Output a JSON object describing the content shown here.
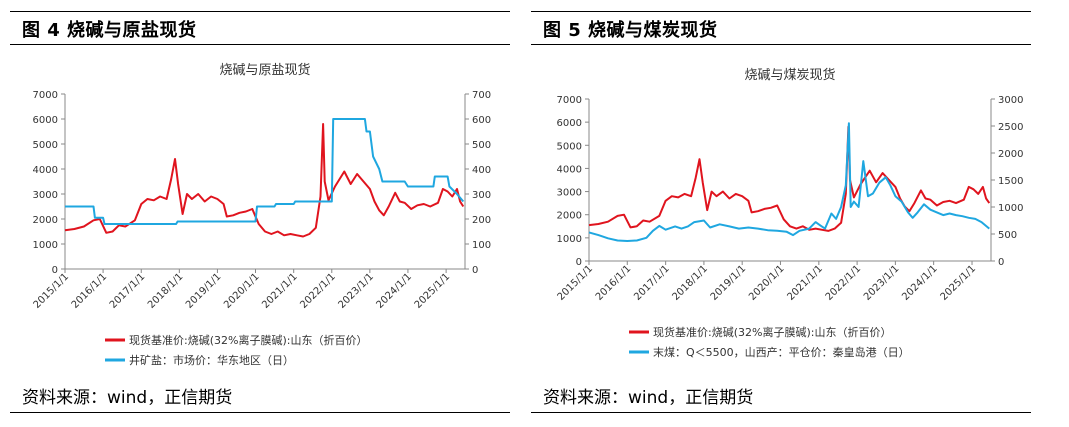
{
  "panels": [
    {
      "figure_title": "图 4  烧碱与原盐现货",
      "source": "资料来源：wind，正信期货"
    },
    {
      "figure_title": "图 5  烧碱与煤炭现货",
      "source": "资料来源：wind，正信期货"
    }
  ],
  "colors": {
    "red": "#e0141e",
    "blue": "#1fa7e0",
    "axis": "#888888"
  },
  "chart_data": [
    {
      "type": "line",
      "title": "烧碱与原盐现货",
      "x_type": "date",
      "xlim": [
        "2015-01-01",
        "2025-07-01"
      ],
      "x_ticks": [
        "2015/1/1",
        "2016/1/1",
        "2017/1/1",
        "2018/1/1",
        "2019/1/1",
        "2020/1/1",
        "2021/1/1",
        "2022/1/1",
        "2023/1/1",
        "2024/1/1",
        "2025/1/1"
      ],
      "ylim": [
        0,
        7000
      ],
      "y_ticks": [
        0,
        1000,
        2000,
        3000,
        4000,
        5000,
        6000,
        7000
      ],
      "y2lim": [
        0,
        700
      ],
      "y2_ticks": [
        0,
        100,
        200,
        300,
        400,
        500,
        600,
        700
      ],
      "legend_position": "bottom",
      "series": [
        {
          "name": "现货基准价:烧碱(32%离子膜碱):山东（折百价）",
          "axis": "left",
          "color": "#e0141e",
          "points": [
            [
              "2015-01-01",
              1550
            ],
            [
              "2015-04-01",
              1600
            ],
            [
              "2015-07-01",
              1700
            ],
            [
              "2015-10-01",
              1950
            ],
            [
              "2015-12-01",
              2000
            ],
            [
              "2016-02-01",
              1450
            ],
            [
              "2016-04-01",
              1500
            ],
            [
              "2016-06-01",
              1750
            ],
            [
              "2016-08-01",
              1700
            ],
            [
              "2016-11-01",
              1950
            ],
            [
              "2017-01-01",
              2600
            ],
            [
              "2017-03-01",
              2800
            ],
            [
              "2017-05-01",
              2750
            ],
            [
              "2017-07-01",
              2900
            ],
            [
              "2017-09-01",
              2800
            ],
            [
              "2017-10-15",
              3600
            ],
            [
              "2017-11-20",
              4400
            ],
            [
              "2017-12-20",
              3400
            ],
            [
              "2018-02-01",
              2200
            ],
            [
              "2018-03-15",
              3000
            ],
            [
              "2018-05-01",
              2800
            ],
            [
              "2018-07-01",
              3000
            ],
            [
              "2018-09-01",
              2700
            ],
            [
              "2018-11-01",
              2900
            ],
            [
              "2019-01-01",
              2800
            ],
            [
              "2019-03-01",
              2600
            ],
            [
              "2019-04-01",
              2100
            ],
            [
              "2019-06-01",
              2150
            ],
            [
              "2019-08-01",
              2250
            ],
            [
              "2019-10-01",
              2300
            ],
            [
              "2019-12-01",
              2400
            ],
            [
              "2020-02-01",
              1800
            ],
            [
              "2020-04-01",
              1500
            ],
            [
              "2020-06-01",
              1400
            ],
            [
              "2020-08-01",
              1500
            ],
            [
              "2020-10-01",
              1350
            ],
            [
              "2020-12-01",
              1400
            ],
            [
              "2021-02-01",
              1350
            ],
            [
              "2021-04-01",
              1300
            ],
            [
              "2021-06-01",
              1400
            ],
            [
              "2021-08-01",
              1650
            ],
            [
              "2021-09-15",
              2900
            ],
            [
              "2021-10-10",
              5800
            ],
            [
              "2021-10-25",
              3500
            ],
            [
              "2021-12-01",
              2750
            ],
            [
              "2022-02-01",
              3300
            ],
            [
              "2022-04-01",
              3700
            ],
            [
              "2022-05-01",
              3900
            ],
            [
              "2022-07-01",
              3400
            ],
            [
              "2022-09-01",
              3800
            ],
            [
              "2022-11-01",
              3500
            ],
            [
              "2023-01-01",
              3200
            ],
            [
              "2023-02-15",
              2700
            ],
            [
              "2023-04-01",
              2350
            ],
            [
              "2023-05-15",
              2150
            ],
            [
              "2023-07-01",
              2500
            ],
            [
              "2023-09-01",
              3050
            ],
            [
              "2023-10-15",
              2700
            ],
            [
              "2023-12-01",
              2650
            ],
            [
              "2024-02-01",
              2400
            ],
            [
              "2024-04-01",
              2550
            ],
            [
              "2024-06-01",
              2600
            ],
            [
              "2024-08-01",
              2500
            ],
            [
              "2024-10-15",
              2650
            ],
            [
              "2024-12-01",
              3200
            ],
            [
              "2025-01-15",
              3100
            ],
            [
              "2025-03-01",
              2900
            ],
            [
              "2025-04-15",
              3200
            ],
            [
              "2025-05-15",
              2700
            ],
            [
              "2025-06-15",
              2500
            ]
          ]
        },
        {
          "name": "井矿盐：市场价：华东地区（日）",
          "axis": "right",
          "color": "#1fa7e0",
          "points": [
            [
              "2015-01-01",
              250
            ],
            [
              "2015-10-01",
              250
            ],
            [
              "2015-10-15",
              205
            ],
            [
              "2016-01-01",
              205
            ],
            [
              "2016-01-15",
              180
            ],
            [
              "2017-12-01",
              180
            ],
            [
              "2017-12-15",
              190
            ],
            [
              "2020-01-01",
              190
            ],
            [
              "2020-01-15",
              250
            ],
            [
              "2020-07-01",
              250
            ],
            [
              "2020-07-15",
              260
            ],
            [
              "2021-01-01",
              260
            ],
            [
              "2021-01-15",
              270
            ],
            [
              "2022-01-01",
              270
            ],
            [
              "2022-01-15",
              600
            ],
            [
              "2022-11-15",
              600
            ],
            [
              "2022-11-30",
              550
            ],
            [
              "2023-01-01",
              550
            ],
            [
              "2023-02-01",
              450
            ],
            [
              "2023-04-01",
              400
            ],
            [
              "2023-05-01",
              350
            ],
            [
              "2023-12-01",
              350
            ],
            [
              "2024-01-01",
              330
            ],
            [
              "2024-09-01",
              330
            ],
            [
              "2024-09-15",
              370
            ],
            [
              "2025-01-15",
              370
            ],
            [
              "2025-02-01",
              330
            ],
            [
              "2025-04-15",
              300
            ],
            [
              "2025-06-15",
              270
            ]
          ]
        }
      ]
    },
    {
      "type": "line",
      "title": "烧碱与煤炭现货",
      "x_type": "date",
      "xlim": [
        "2015-01-01",
        "2025-07-01"
      ],
      "x_ticks": [
        "2015/1/1",
        "2016/1/1",
        "2017/1/1",
        "2018/1/1",
        "2019/1/1",
        "2020/1/1",
        "2021/1/1",
        "2022/1/1",
        "2023/1/1",
        "2024/1/1",
        "2025/1/1"
      ],
      "ylim": [
        0,
        7000
      ],
      "y_ticks": [
        0,
        1000,
        2000,
        3000,
        4000,
        5000,
        6000,
        7000
      ],
      "y2lim": [
        0,
        3000
      ],
      "y2_ticks": [
        0,
        500,
        1000,
        1500,
        2000,
        2500,
        3000
      ],
      "legend_position": "bottom",
      "series": [
        {
          "name": "现货基准价:烧碱(32%离子膜碱):山东（折百价）",
          "axis": "left",
          "color": "#e0141e",
          "points": [
            [
              "2015-01-01",
              1550
            ],
            [
              "2015-04-01",
              1600
            ],
            [
              "2015-07-01",
              1700
            ],
            [
              "2015-10-01",
              1950
            ],
            [
              "2015-12-01",
              2000
            ],
            [
              "2016-02-01",
              1450
            ],
            [
              "2016-04-01",
              1500
            ],
            [
              "2016-06-01",
              1750
            ],
            [
              "2016-08-01",
              1700
            ],
            [
              "2016-11-01",
              1950
            ],
            [
              "2017-01-01",
              2600
            ],
            [
              "2017-03-01",
              2800
            ],
            [
              "2017-05-01",
              2750
            ],
            [
              "2017-07-01",
              2900
            ],
            [
              "2017-09-01",
              2800
            ],
            [
              "2017-10-15",
              3600
            ],
            [
              "2017-11-20",
              4400
            ],
            [
              "2017-12-20",
              3400
            ],
            [
              "2018-02-01",
              2200
            ],
            [
              "2018-03-15",
              3000
            ],
            [
              "2018-05-01",
              2800
            ],
            [
              "2018-07-01",
              3000
            ],
            [
              "2018-09-01",
              2700
            ],
            [
              "2018-11-01",
              2900
            ],
            [
              "2019-01-01",
              2800
            ],
            [
              "2019-03-01",
              2600
            ],
            [
              "2019-04-01",
              2100
            ],
            [
              "2019-06-01",
              2150
            ],
            [
              "2019-08-01",
              2250
            ],
            [
              "2019-10-01",
              2300
            ],
            [
              "2019-12-01",
              2400
            ],
            [
              "2020-02-01",
              1800
            ],
            [
              "2020-04-01",
              1500
            ],
            [
              "2020-06-01",
              1400
            ],
            [
              "2020-08-01",
              1500
            ],
            [
              "2020-10-01",
              1350
            ],
            [
              "2020-12-01",
              1400
            ],
            [
              "2021-02-01",
              1350
            ],
            [
              "2021-04-01",
              1300
            ],
            [
              "2021-06-01",
              1400
            ],
            [
              "2021-08-01",
              1650
            ],
            [
              "2021-09-15",
              2900
            ],
            [
              "2021-10-10",
              5800
            ],
            [
              "2021-10-25",
              3500
            ],
            [
              "2021-12-01",
              2750
            ],
            [
              "2022-02-01",
              3300
            ],
            [
              "2022-04-01",
              3700
            ],
            [
              "2022-05-01",
              3900
            ],
            [
              "2022-07-01",
              3400
            ],
            [
              "2022-09-01",
              3800
            ],
            [
              "2022-11-01",
              3500
            ],
            [
              "2023-01-01",
              3200
            ],
            [
              "2023-02-15",
              2700
            ],
            [
              "2023-04-01",
              2350
            ],
            [
              "2023-05-15",
              2150
            ],
            [
              "2023-07-01",
              2500
            ],
            [
              "2023-09-01",
              3050
            ],
            [
              "2023-10-15",
              2700
            ],
            [
              "2023-12-01",
              2650
            ],
            [
              "2024-02-01",
              2400
            ],
            [
              "2024-04-01",
              2550
            ],
            [
              "2024-06-01",
              2600
            ],
            [
              "2024-08-01",
              2500
            ],
            [
              "2024-10-15",
              2650
            ],
            [
              "2024-12-01",
              3200
            ],
            [
              "2025-01-15",
              3100
            ],
            [
              "2025-03-01",
              2900
            ],
            [
              "2025-04-15",
              3200
            ],
            [
              "2025-05-15",
              2700
            ],
            [
              "2025-06-15",
              2500
            ]
          ]
        },
        {
          "name": "末煤：Q＜5500，山西产：平仓价：秦皇岛港（日）",
          "axis": "right",
          "color": "#1fa7e0",
          "points": [
            [
              "2015-01-01",
              530
            ],
            [
              "2015-04-01",
              480
            ],
            [
              "2015-07-01",
              420
            ],
            [
              "2015-10-01",
              380
            ],
            [
              "2016-01-01",
              370
            ],
            [
              "2016-04-01",
              380
            ],
            [
              "2016-07-01",
              430
            ],
            [
              "2016-09-01",
              560
            ],
            [
              "2016-11-01",
              650
            ],
            [
              "2017-01-01",
              580
            ],
            [
              "2017-04-01",
              640
            ],
            [
              "2017-06-01",
              600
            ],
            [
              "2017-08-01",
              640
            ],
            [
              "2017-10-01",
              720
            ],
            [
              "2018-01-01",
              750
            ],
            [
              "2018-03-01",
              620
            ],
            [
              "2018-06-01",
              680
            ],
            [
              "2018-09-01",
              640
            ],
            [
              "2018-12-01",
              600
            ],
            [
              "2019-03-01",
              620
            ],
            [
              "2019-06-01",
              600
            ],
            [
              "2019-09-01",
              570
            ],
            [
              "2019-12-01",
              560
            ],
            [
              "2020-03-01",
              540
            ],
            [
              "2020-05-01",
              480
            ],
            [
              "2020-07-01",
              560
            ],
            [
              "2020-10-01",
              600
            ],
            [
              "2020-12-01",
              720
            ],
            [
              "2021-01-15",
              660
            ],
            [
              "2021-03-01",
              600
            ],
            [
              "2021-05-01",
              880
            ],
            [
              "2021-06-15",
              780
            ],
            [
              "2021-08-01",
              1000
            ],
            [
              "2021-09-15",
              1400
            ],
            [
              "2021-10-15",
              2550
            ],
            [
              "2021-11-01",
              1000
            ],
            [
              "2021-12-01",
              1100
            ],
            [
              "2022-01-15",
              1000
            ],
            [
              "2022-03-01",
              1850
            ],
            [
              "2022-04-15",
              1200
            ],
            [
              "2022-06-01",
              1250
            ],
            [
              "2022-08-01",
              1450
            ],
            [
              "2022-10-01",
              1550
            ],
            [
              "2022-11-15",
              1400
            ],
            [
              "2023-01-01",
              1200
            ],
            [
              "2023-03-01",
              1100
            ],
            [
              "2023-05-01",
              900
            ],
            [
              "2023-06-15",
              800
            ],
            [
              "2023-08-01",
              900
            ],
            [
              "2023-10-01",
              1050
            ],
            [
              "2023-12-01",
              950
            ],
            [
              "2024-02-01",
              900
            ],
            [
              "2024-04-01",
              850
            ],
            [
              "2024-06-01",
              880
            ],
            [
              "2024-08-01",
              850
            ],
            [
              "2024-10-01",
              830
            ],
            [
              "2024-12-01",
              800
            ],
            [
              "2025-02-01",
              780
            ],
            [
              "2025-04-01",
              720
            ],
            [
              "2025-06-15",
              600
            ]
          ]
        }
      ]
    }
  ]
}
